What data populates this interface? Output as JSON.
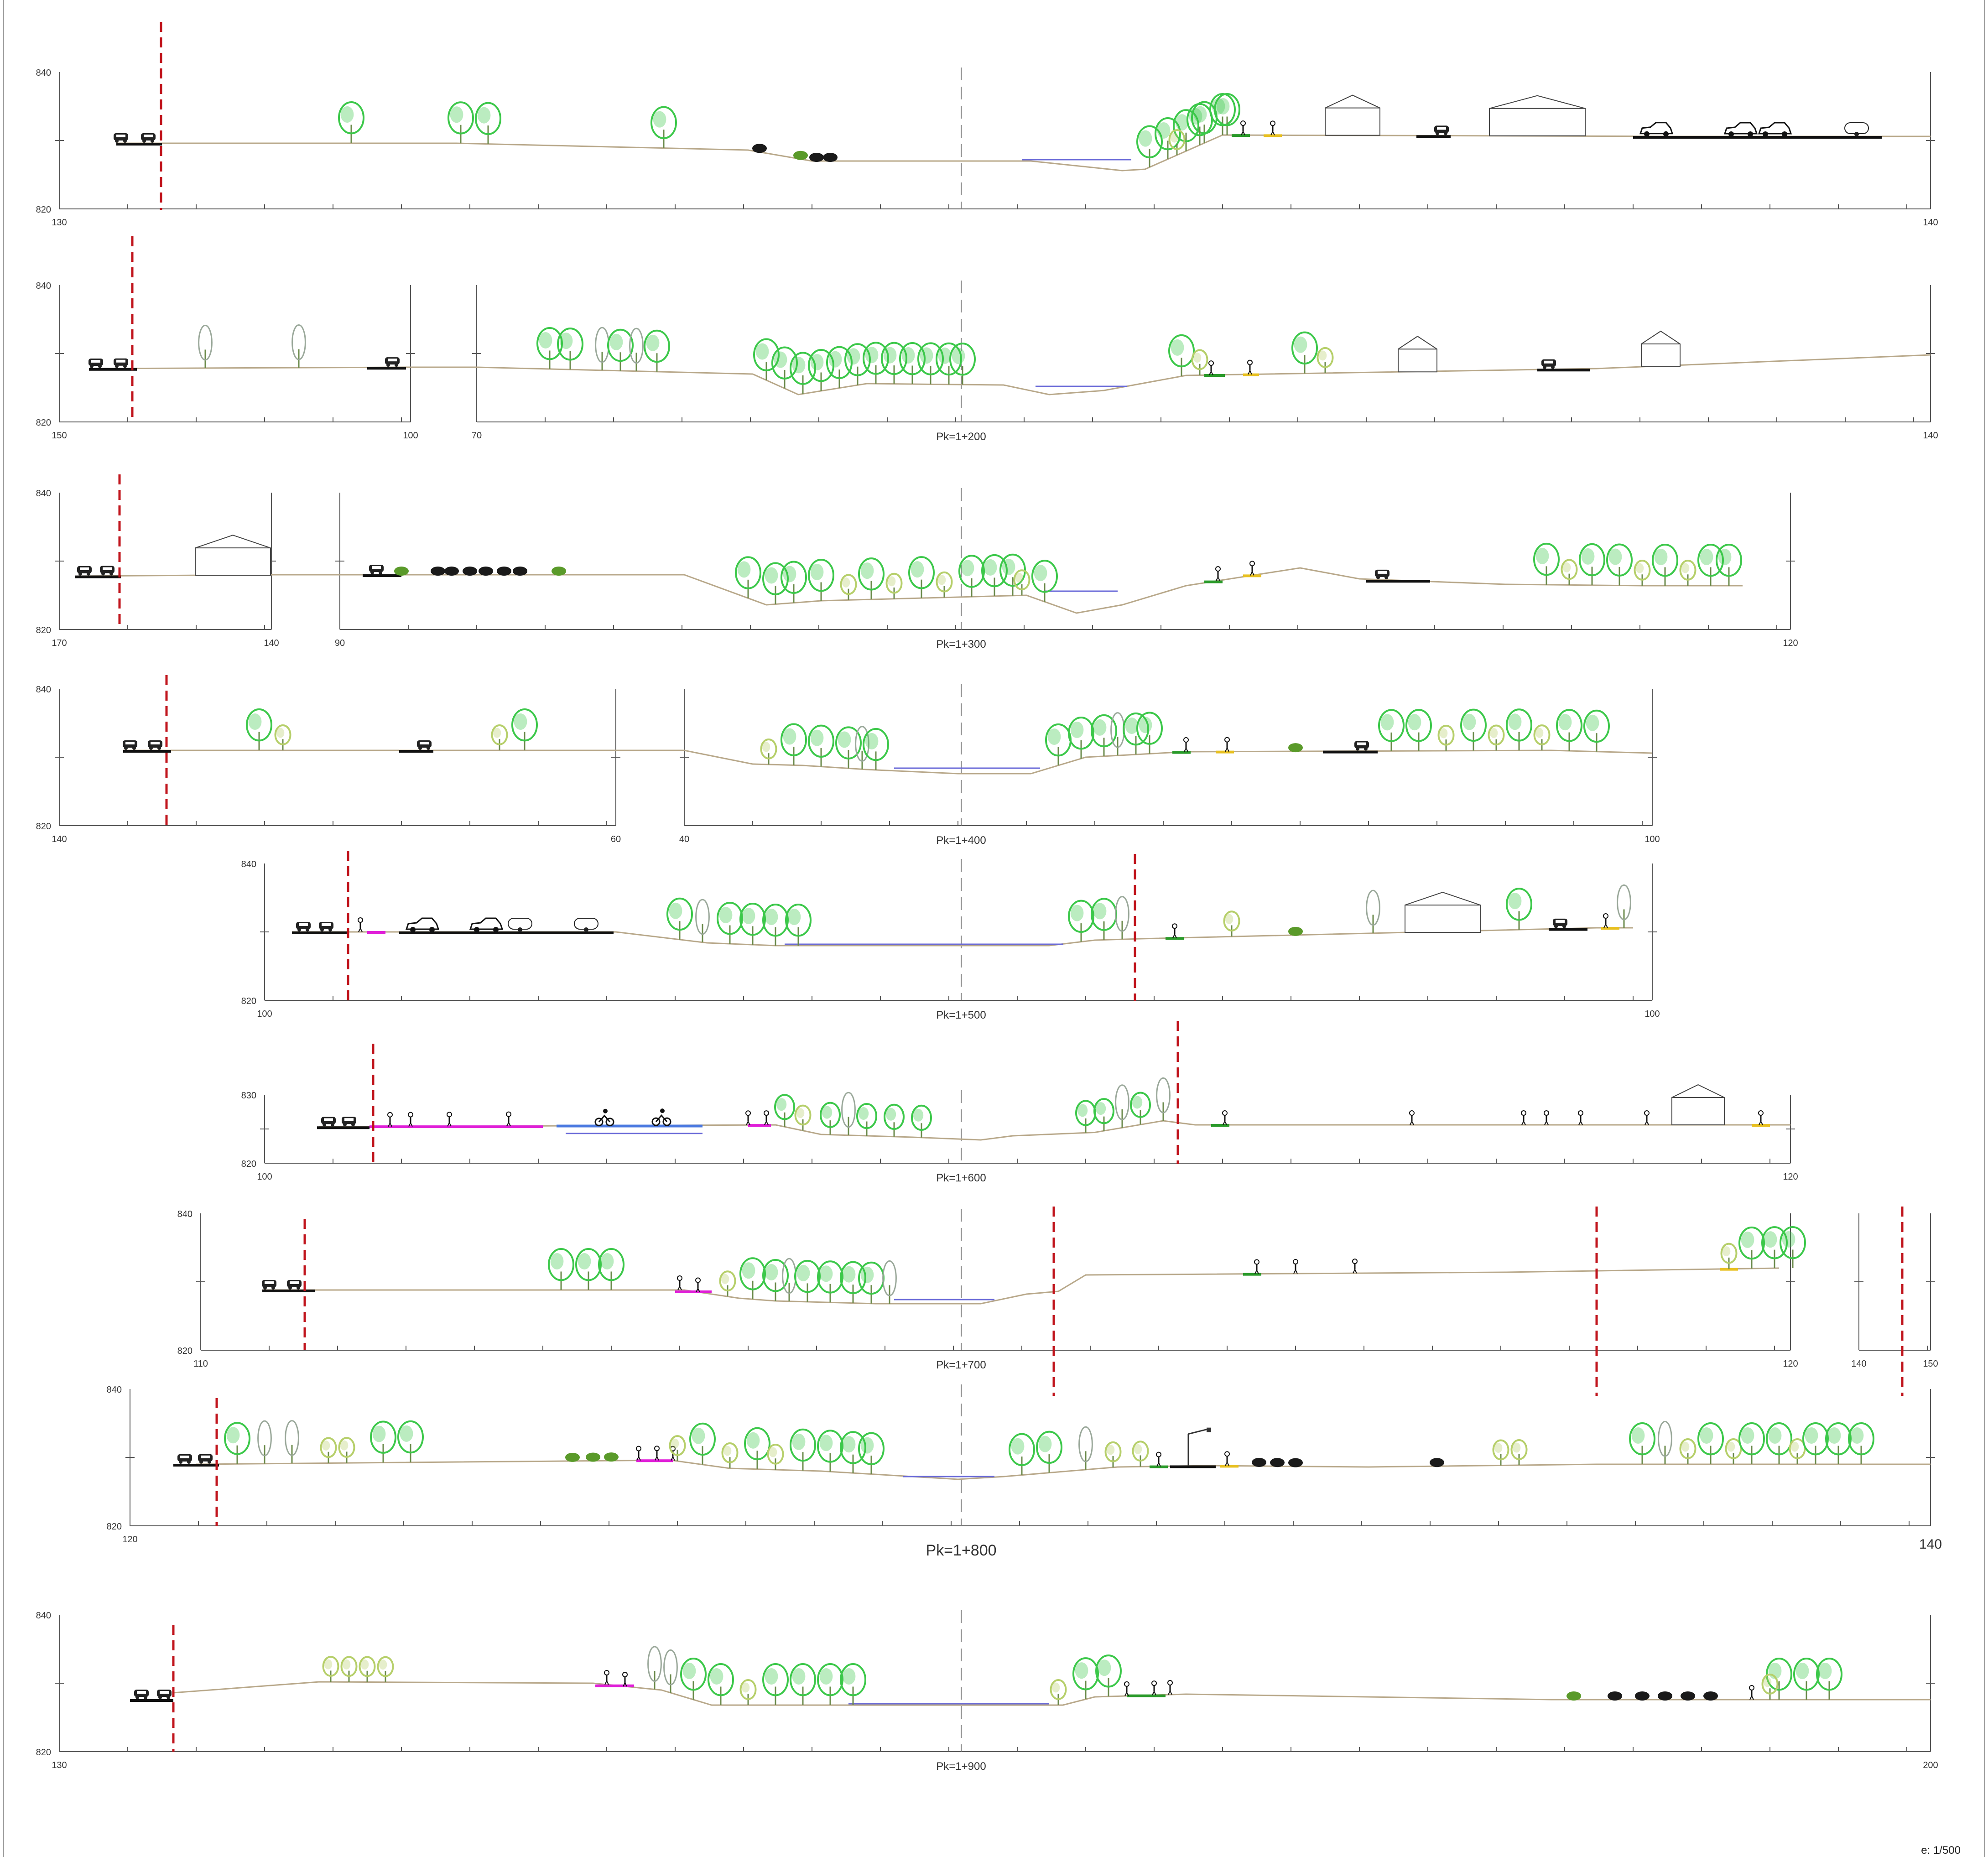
{
  "drawing": {
    "scale": "e: 1/500",
    "sections": [
      {
        "pk": "",
        "elev_top": "840",
        "elev_bottom": "820",
        "dist_left": "130",
        "dist_right": "140"
      },
      {
        "pk": "Pk=1+200",
        "elev_top": "840",
        "elev_bottom": "820",
        "dist_left": "150",
        "dist_mid_a": "100",
        "dist_mid_b": "70",
        "dist_right": "140"
      },
      {
        "pk": "Pk=1+300",
        "elev_top": "840",
        "elev_bottom": "820",
        "dist_left": "170",
        "dist_mid_a": "140",
        "dist_mid_b": "90",
        "dist_right": "120"
      },
      {
        "pk": "Pk=1+400",
        "elev_top": "840",
        "elev_bottom": "820",
        "dist_left": "140",
        "dist_mid_a": "60",
        "dist_mid_b": "40",
        "dist_right": "100"
      },
      {
        "pk": "Pk=1+500",
        "elev_top": "840",
        "elev_bottom": "820",
        "dist_left": "100",
        "dist_right": "100"
      },
      {
        "pk": "Pk=1+600",
        "elev_top": "830",
        "elev_bottom": "820",
        "dist_left": "100",
        "dist_right": "120"
      },
      {
        "pk": "Pk=1+700",
        "elev_top": "840",
        "elev_bottom": "820",
        "dist_left": "110",
        "dist_mid_a": "120",
        "dist_mid_b": "140",
        "dist_right": "150"
      },
      {
        "pk": "Pk=1+800",
        "elev_top": "840",
        "elev_bottom": "820",
        "dist_left": "120",
        "dist_right": "140"
      },
      {
        "pk": "Pk=1+900",
        "elev_top": "840",
        "elev_bottom": "820",
        "dist_left": "130",
        "dist_right": "200"
      }
    ]
  },
  "colors": {
    "terrain": "#b8a88a",
    "water": "#6a6ad8",
    "tree": "#3cc84a",
    "tree_light": "#b6cf6a",
    "tree_grey": "#9aa89a",
    "shrub": "#5a9a2a",
    "road": "#111111",
    "property_line": "#c0141c",
    "axis": "#555555",
    "bike_path": "#e01ed8",
    "bike_lane": "#4a78e0",
    "green_strip": "#2a9a2a",
    "yellow_strip": "#e8c020"
  }
}
